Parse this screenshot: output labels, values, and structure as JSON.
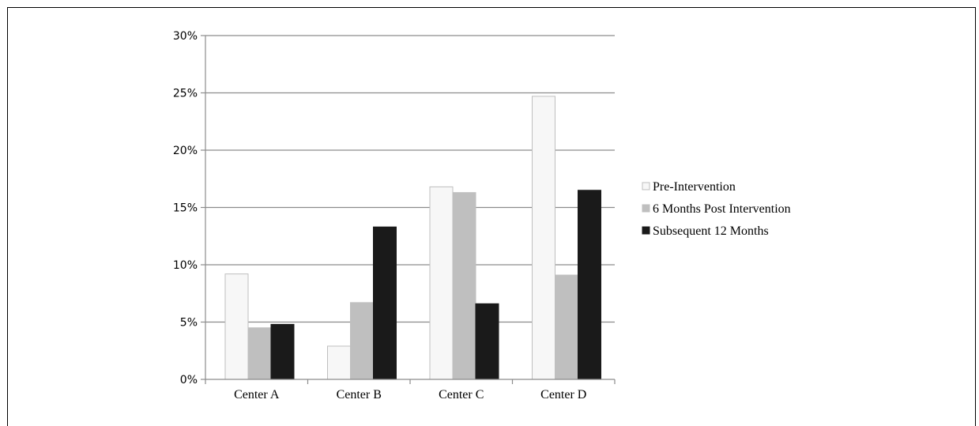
{
  "chart_data": {
    "type": "bar",
    "categories": [
      "Center A",
      "Center B",
      "Center C",
      "Center D"
    ],
    "series": [
      {
        "name": "Pre-Intervention",
        "values": [
          9.2,
          2.9,
          16.8,
          24.7
        ],
        "color": "#f7f7f7",
        "stroke": "#bfbfbf"
      },
      {
        "name": "6 Months Post Intervention",
        "values": [
          4.5,
          6.7,
          16.3,
          9.1
        ],
        "color": "#bfbfbf",
        "stroke": "#bfbfbf"
      },
      {
        "name": "Subsequent 12 Months",
        "values": [
          4.8,
          13.3,
          6.6,
          16.5
        ],
        "color": "#1a1a1a",
        "stroke": "#1a1a1a"
      }
    ],
    "ylim": [
      0,
      30
    ],
    "yticks": [
      0,
      5,
      10,
      15,
      20,
      25,
      30
    ],
    "ytick_labels": [
      "0%",
      "5%",
      "10%",
      "15%",
      "20%",
      "25%",
      "30%"
    ],
    "grid": true,
    "legend": "right",
    "title": "",
    "xlabel": "",
    "ylabel": ""
  }
}
